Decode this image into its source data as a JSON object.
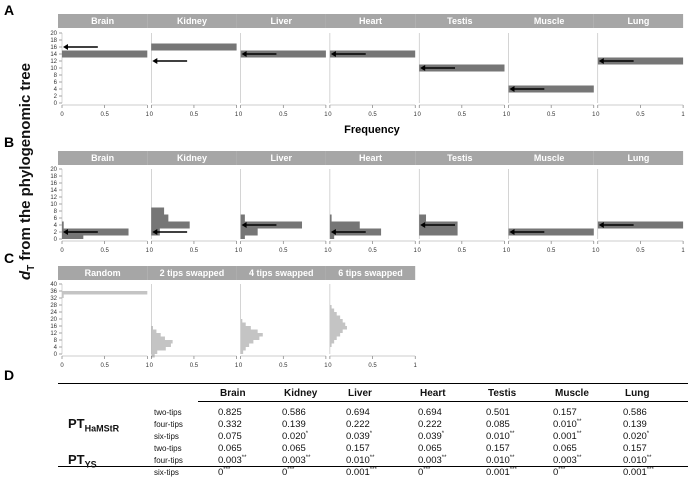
{
  "figure": {
    "ylabel_prefix": "d",
    "ylabel_sub": "T",
    "ylabel_rest": " from the phylogenomic tree",
    "panel_letters": [
      "A",
      "B",
      "C",
      "D"
    ],
    "colors": {
      "header": "#a6a6a6",
      "dark_bar": "#767676",
      "light_bar": "#c4c4c4",
      "arrow": "#000000"
    }
  },
  "chart_data": [
    {
      "panel": "A",
      "type": "bar",
      "orientation": "horizontal histogram",
      "xlabel": "Frequency",
      "ylim": [
        0,
        20
      ],
      "xlim": [
        0,
        1
      ],
      "yticks": [
        0,
        2,
        4,
        6,
        8,
        10,
        12,
        14,
        16,
        18,
        20
      ],
      "xticks": [
        "0",
        "0.5",
        "1"
      ],
      "facets": [
        {
          "name": "Brain",
          "bins": [
            {
              "y0": 13,
              "y1": 15,
              "value": 1.0
            }
          ],
          "arrow_y": 16
        },
        {
          "name": "Kidney",
          "bins": [
            {
              "y0": 15,
              "y1": 17,
              "value": 1.0
            }
          ],
          "arrow_y": 12
        },
        {
          "name": "Liver",
          "bins": [
            {
              "y0": 13,
              "y1": 15,
              "value": 1.0
            }
          ],
          "arrow_y": 14
        },
        {
          "name": "Heart",
          "bins": [
            {
              "y0": 13,
              "y1": 15,
              "value": 1.0
            }
          ],
          "arrow_y": 14
        },
        {
          "name": "Testis",
          "bins": [
            {
              "y0": 9,
              "y1": 11,
              "value": 1.0
            }
          ],
          "arrow_y": 10
        },
        {
          "name": "Muscle",
          "bins": [
            {
              "y0": 3,
              "y1": 5,
              "value": 1.0
            }
          ],
          "arrow_y": 4
        },
        {
          "name": "Lung",
          "bins": [
            {
              "y0": 11,
              "y1": 13,
              "value": 1.0
            }
          ],
          "arrow_y": 12
        }
      ]
    },
    {
      "panel": "B",
      "type": "bar",
      "orientation": "horizontal histogram",
      "ylim": [
        0,
        20
      ],
      "xlim": [
        0,
        1
      ],
      "yticks": [
        0,
        2,
        4,
        6,
        8,
        10,
        12,
        14,
        16,
        18,
        20
      ],
      "xticks": [
        "0",
        "0.5",
        "1"
      ],
      "facets": [
        {
          "name": "Brain",
          "bins": [
            {
              "y0": 0,
              "y1": 1,
              "value": 0.25
            },
            {
              "y0": 1,
              "y1": 3,
              "value": 0.78
            },
            {
              "y0": 3,
              "y1": 5,
              "value": 0.02
            }
          ],
          "arrow_y": 2
        },
        {
          "name": "Kidney",
          "bins": [
            {
              "y0": 1,
              "y1": 3,
              "value": 0.1
            },
            {
              "y0": 3,
              "y1": 5,
              "value": 0.45
            },
            {
              "y0": 5,
              "y1": 7,
              "value": 0.2
            },
            {
              "y0": 7,
              "y1": 9,
              "value": 0.15
            }
          ],
          "arrow_y": 2
        },
        {
          "name": "Liver",
          "bins": [
            {
              "y0": 0,
              "y1": 1,
              "value": 0.05
            },
            {
              "y0": 1,
              "y1": 3,
              "value": 0.2
            },
            {
              "y0": 3,
              "y1": 5,
              "value": 0.72
            },
            {
              "y0": 5,
              "y1": 7,
              "value": 0.05
            }
          ],
          "arrow_y": 4
        },
        {
          "name": "Heart",
          "bins": [
            {
              "y0": 0,
              "y1": 1,
              "value": 0.05
            },
            {
              "y0": 1,
              "y1": 3,
              "value": 0.6
            },
            {
              "y0": 3,
              "y1": 5,
              "value": 0.35
            },
            {
              "y0": 5,
              "y1": 7,
              "value": 0.02
            }
          ],
          "arrow_y": 2
        },
        {
          "name": "Testis",
          "bins": [
            {
              "y0": 1,
              "y1": 3,
              "value": 0.45
            },
            {
              "y0": 3,
              "y1": 5,
              "value": 0.45
            },
            {
              "y0": 5,
              "y1": 7,
              "value": 0.08
            }
          ],
          "arrow_y": 4
        },
        {
          "name": "Muscle",
          "bins": [
            {
              "y0": 1,
              "y1": 3,
              "value": 1.0
            }
          ],
          "arrow_y": 2
        },
        {
          "name": "Lung",
          "bins": [
            {
              "y0": 3,
              "y1": 5,
              "value": 1.0
            }
          ],
          "arrow_y": 4
        }
      ]
    },
    {
      "panel": "C",
      "type": "bar",
      "orientation": "horizontal histogram",
      "ylim": [
        0,
        40
      ],
      "xlim": [
        0,
        1
      ],
      "yticks": [
        0,
        4,
        8,
        12,
        16,
        20,
        24,
        28,
        32,
        36,
        40
      ],
      "xticks": [
        "0",
        "0.5",
        "1"
      ],
      "facets": [
        {
          "name": "Random",
          "bins": [
            {
              "y0": 32,
              "y1": 34,
              "value": 0.02
            },
            {
              "y0": 34,
              "y1": 36,
              "value": 1.0
            }
          ]
        },
        {
          "name": "2 tips swapped",
          "bins": [
            {
              "y0": -2,
              "y1": 0,
              "value": 0.04
            },
            {
              "y0": 0,
              "y1": 2,
              "value": 0.07
            },
            {
              "y0": 2,
              "y1": 4,
              "value": 0.17
            },
            {
              "y0": 4,
              "y1": 6,
              "value": 0.23
            },
            {
              "y0": 6,
              "y1": 8,
              "value": 0.25
            },
            {
              "y0": 8,
              "y1": 10,
              "value": 0.16
            },
            {
              "y0": 10,
              "y1": 12,
              "value": 0.11
            },
            {
              "y0": 12,
              "y1": 14,
              "value": 0.06
            },
            {
              "y0": 14,
              "y1": 16,
              "value": 0.02
            }
          ]
        },
        {
          "name": "4 tips swapped",
          "bins": [
            {
              "y0": 0,
              "y1": 2,
              "value": 0.03
            },
            {
              "y0": 2,
              "y1": 4,
              "value": 0.06
            },
            {
              "y0": 4,
              "y1": 6,
              "value": 0.1
            },
            {
              "y0": 6,
              "y1": 8,
              "value": 0.15
            },
            {
              "y0": 8,
              "y1": 10,
              "value": 0.22
            },
            {
              "y0": 10,
              "y1": 12,
              "value": 0.26
            },
            {
              "y0": 12,
              "y1": 14,
              "value": 0.2
            },
            {
              "y0": 14,
              "y1": 16,
              "value": 0.12
            },
            {
              "y0": 16,
              "y1": 18,
              "value": 0.06
            },
            {
              "y0": 18,
              "y1": 20,
              "value": 0.02
            }
          ]
        },
        {
          "name": "6 tips swapped",
          "bins": [
            {
              "y0": 4,
              "y1": 6,
              "value": 0.02
            },
            {
              "y0": 6,
              "y1": 8,
              "value": 0.05
            },
            {
              "y0": 8,
              "y1": 10,
              "value": 0.08
            },
            {
              "y0": 10,
              "y1": 12,
              "value": 0.12
            },
            {
              "y0": 12,
              "y1": 14,
              "value": 0.15
            },
            {
              "y0": 14,
              "y1": 16,
              "value": 0.2
            },
            {
              "y0": 16,
              "y1": 18,
              "value": 0.18
            },
            {
              "y0": 18,
              "y1": 20,
              "value": 0.15
            },
            {
              "y0": 20,
              "y1": 22,
              "value": 0.12
            },
            {
              "y0": 22,
              "y1": 24,
              "value": 0.08
            },
            {
              "y0": 24,
              "y1": 26,
              "value": 0.05
            },
            {
              "y0": 26,
              "y1": 28,
              "value": 0.02
            }
          ]
        }
      ]
    },
    {
      "panel": "D",
      "type": "table",
      "columns": [
        "Brain",
        "Kidney",
        "Liver",
        "Heart",
        "Testis",
        "Muscle",
        "Lung"
      ],
      "groups": [
        {
          "name": "PT",
          "sub": "HaMStR",
          "rows": [
            {
              "label": "two-tips",
              "values": [
                {
                  "v": "0.825",
                  "s": ""
                },
                {
                  "v": "0.586",
                  "s": ""
                },
                {
                  "v": "0.694",
                  "s": ""
                },
                {
                  "v": "0.694",
                  "s": ""
                },
                {
                  "v": "0.501",
                  "s": ""
                },
                {
                  "v": "0.157",
                  "s": ""
                },
                {
                  "v": "0.586",
                  "s": ""
                }
              ]
            },
            {
              "label": "four-tips",
              "values": [
                {
                  "v": "0.332",
                  "s": ""
                },
                {
                  "v": "0.139",
                  "s": ""
                },
                {
                  "v": "0.222",
                  "s": ""
                },
                {
                  "v": "0.222",
                  "s": ""
                },
                {
                  "v": "0.085",
                  "s": ""
                },
                {
                  "v": "0.010",
                  "s": "**"
                },
                {
                  "v": "0.139",
                  "s": ""
                }
              ]
            },
            {
              "label": "six-tips",
              "values": [
                {
                  "v": "0.075",
                  "s": ""
                },
                {
                  "v": "0.020",
                  "s": "*"
                },
                {
                  "v": "0.039",
                  "s": "*"
                },
                {
                  "v": "0.039",
                  "s": "*"
                },
                {
                  "v": "0.010",
                  "s": "**"
                },
                {
                  "v": "0.001",
                  "s": "**"
                },
                {
                  "v": "0.020",
                  "s": "*"
                }
              ]
            }
          ]
        },
        {
          "name": "PT",
          "sub": "YS",
          "rows": [
            {
              "label": "two-tips",
              "values": [
                {
                  "v": "0.065",
                  "s": ""
                },
                {
                  "v": "0.065",
                  "s": ""
                },
                {
                  "v": "0.157",
                  "s": ""
                },
                {
                  "v": "0.065",
                  "s": ""
                },
                {
                  "v": "0.157",
                  "s": ""
                },
                {
                  "v": "0.065",
                  "s": ""
                },
                {
                  "v": "0.157",
                  "s": ""
                }
              ]
            },
            {
              "label": "four-tips",
              "values": [
                {
                  "v": "0.003",
                  "s": "**"
                },
                {
                  "v": "0.003",
                  "s": "**"
                },
                {
                  "v": "0.010",
                  "s": "**"
                },
                {
                  "v": "0.003",
                  "s": "**"
                },
                {
                  "v": "0.010",
                  "s": "**"
                },
                {
                  "v": "0.003",
                  "s": "**"
                },
                {
                  "v": "0.010",
                  "s": "**"
                }
              ]
            },
            {
              "label": "six-tips",
              "values": [
                {
                  "v": "0",
                  "s": "***"
                },
                {
                  "v": "0",
                  "s": "***"
                },
                {
                  "v": "0.001",
                  "s": "***"
                },
                {
                  "v": "0",
                  "s": "***"
                },
                {
                  "v": "0.001",
                  "s": "***"
                },
                {
                  "v": "0",
                  "s": "***"
                },
                {
                  "v": "0.001",
                  "s": "***"
                }
              ]
            }
          ]
        }
      ]
    }
  ]
}
